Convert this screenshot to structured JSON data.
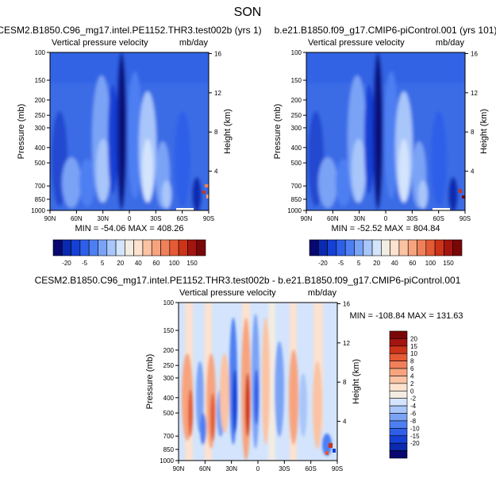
{
  "main_title": "SON",
  "colors": {
    "cb1": [
      "#08086e",
      "#0a2ab0",
      "#1540d6",
      "#2e5fe8",
      "#4d7ff2",
      "#7aa3f6",
      "#a9c6fa",
      "#d3e4fc",
      "#f2ece2",
      "#fde2cf",
      "#fbc3a3",
      "#f7a47e",
      "#f0805a",
      "#e45a35",
      "#cc3319",
      "#a41510",
      "#7a0707"
    ],
    "cb2": [
      "#08086e",
      "#0a2ab0",
      "#1540d6",
      "#2e5fe8",
      "#4d7ff2",
      "#7aa3f6",
      "#a9c6fa",
      "#d3e4fc",
      "#f2ece2",
      "#fde2cf",
      "#fbc3a3",
      "#f7a47e",
      "#f0805a",
      "#e45a35",
      "#cc3319",
      "#a41510",
      "#7a0707"
    ]
  },
  "chart_data": [
    {
      "type": "heatmap",
      "title": "CESM2.B1850.C96_mg17.intel.PE1152.THR3.test002b (yrs 1)",
      "left_header": "Vertical pressure velocity",
      "right_header": "mb/day",
      "ylabel": "Pressure (mb)",
      "ylabel_right": "Height (km)",
      "x_ticks": [
        "90N",
        "60N",
        "30N",
        "0",
        "30S",
        "60S",
        "90S"
      ],
      "y_ticks": [
        "100",
        "150",
        "200",
        "250",
        "300",
        "400",
        "500",
        "700",
        "850",
        "1000"
      ],
      "y_ticks_right": [
        "16",
        "12",
        "8",
        "4"
      ],
      "stats": "MIN = -54.06   MAX = 408.26",
      "colorbar_labels": [
        "-20",
        "-5",
        "5",
        "20",
        "40",
        "60",
        "100",
        "150"
      ],
      "contour_levels": [
        -50,
        -40,
        -30,
        -20,
        -10,
        -5,
        0,
        5,
        10,
        20,
        30,
        40,
        60,
        80,
        100,
        150
      ],
      "grid": false
    },
    {
      "type": "heatmap",
      "title": "b.e21.B1850.f09_g17.CMIP6-piControl.001 (yrs 101)",
      "left_header": "Vertical pressure velocity",
      "right_header": "mb/day",
      "ylabel": "Pressure (mb)",
      "ylabel_right": "Height (km)",
      "x_ticks": [
        "90N",
        "60N",
        "30N",
        "0",
        "30S",
        "60S",
        "90S"
      ],
      "y_ticks": [
        "100",
        "150",
        "200",
        "250",
        "300",
        "400",
        "500",
        "700",
        "850",
        "1000"
      ],
      "y_ticks_right": [
        "16",
        "12",
        "8",
        "4"
      ],
      "stats": "MIN = -52.52   MAX = 804.84",
      "colorbar_labels": [
        "-20",
        "-5",
        "5",
        "20",
        "40",
        "60",
        "100",
        "150"
      ],
      "contour_levels": [
        -50,
        -40,
        -30,
        -20,
        -10,
        -5,
        0,
        5,
        10,
        20,
        30,
        40,
        60,
        80,
        100,
        150
      ],
      "grid": false
    },
    {
      "type": "heatmap",
      "title": "CESM2.B1850.C96_mg17.intel.PE1152.THR3.test002b - b.e21.B1850.f09_g17.CMIP6-piControl.001",
      "left_header": "Vertical pressure velocity",
      "right_header": "mb/day",
      "ylabel": "Pressure (mb)",
      "ylabel_right": "Height (km)",
      "x_ticks": [
        "90N",
        "60N",
        "30N",
        "0",
        "30S",
        "60S",
        "90S"
      ],
      "y_ticks": [
        "100",
        "150",
        "200",
        "250",
        "300",
        "400",
        "500",
        "700",
        "850",
        "1000"
      ],
      "y_ticks_right": [
        "16",
        "12",
        "8",
        "4"
      ],
      "stats": "MIN = -108.84   MAX = 131.63",
      "colorbar_labels": [
        "20",
        "15",
        "10",
        "8",
        "6",
        "4",
        "2",
        "0",
        "-2",
        "-4",
        "-6",
        "-8",
        "-10",
        "-15",
        "-20"
      ],
      "contour_levels": [
        -25,
        -20,
        -15,
        -10,
        -8,
        -6,
        -4,
        -2,
        0,
        2,
        4,
        6,
        8,
        10,
        15,
        20,
        25
      ],
      "grid": false
    }
  ]
}
